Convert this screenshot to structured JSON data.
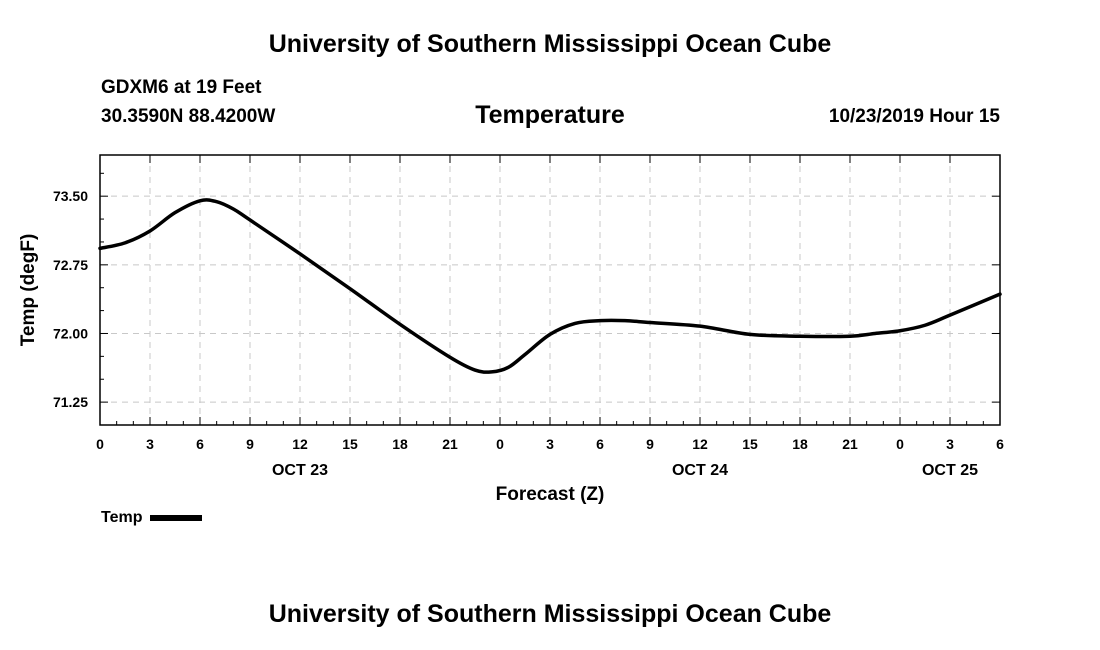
{
  "page": {
    "title_top": "University of Southern Mississippi Ocean Cube",
    "title_bottom": "University of Southern Mississippi Ocean Cube",
    "station": "GDXM6 at 19 Feet",
    "coords": "30.3590N 88.4200W",
    "plot_title": "Temperature",
    "datestamp": "10/23/2019 Hour 15"
  },
  "chart_data": {
    "type": "line",
    "title": "Temperature",
    "xlabel": "Forecast (Z)",
    "ylabel": "Temp (degF)",
    "xlim": [
      0,
      54
    ],
    "ylim": [
      71.0,
      73.95
    ],
    "x_ticks": [
      {
        "pos": 0,
        "label": "0"
      },
      {
        "pos": 3,
        "label": "3"
      },
      {
        "pos": 6,
        "label": "6"
      },
      {
        "pos": 9,
        "label": "9"
      },
      {
        "pos": 12,
        "label": "12"
      },
      {
        "pos": 15,
        "label": "15"
      },
      {
        "pos": 18,
        "label": "18"
      },
      {
        "pos": 21,
        "label": "21"
      },
      {
        "pos": 24,
        "label": "0"
      },
      {
        "pos": 27,
        "label": "3"
      },
      {
        "pos": 30,
        "label": "6"
      },
      {
        "pos": 33,
        "label": "9"
      },
      {
        "pos": 36,
        "label": "12"
      },
      {
        "pos": 39,
        "label": "15"
      },
      {
        "pos": 42,
        "label": "18"
      },
      {
        "pos": 45,
        "label": "21"
      },
      {
        "pos": 48,
        "label": "0"
      },
      {
        "pos": 51,
        "label": "3"
      },
      {
        "pos": 54,
        "label": "6"
      }
    ],
    "date_labels": [
      {
        "pos": 12,
        "label": "OCT 23"
      },
      {
        "pos": 36,
        "label": "OCT 24"
      },
      {
        "pos": 51,
        "label": "OCT 25"
      }
    ],
    "y_ticks": [
      {
        "value": 71.25,
        "label": "71.25"
      },
      {
        "value": 72.0,
        "label": "72.00"
      },
      {
        "value": 72.75,
        "label": "72.75"
      },
      {
        "value": 73.5,
        "label": "73.50"
      }
    ],
    "grid": true,
    "legend": "bottom-left",
    "series": [
      {
        "name": "Temp",
        "x": [
          0,
          1.5,
          3,
          4.5,
          6,
          7,
          8,
          9,
          12,
          15,
          18,
          21,
          22.5,
          23.5,
          24.5,
          25.5,
          27,
          28.5,
          30,
          31.5,
          33,
          36,
          39,
          42,
          45,
          46.5,
          48,
          49.5,
          51,
          54
        ],
        "y": [
          72.93,
          72.99,
          73.12,
          73.32,
          73.45,
          73.44,
          73.36,
          73.24,
          72.87,
          72.49,
          72.1,
          71.74,
          71.6,
          71.58,
          71.63,
          71.77,
          71.99,
          72.11,
          72.14,
          72.14,
          72.12,
          72.08,
          71.99,
          71.97,
          71.97,
          72.0,
          72.03,
          72.09,
          72.2,
          72.43
        ]
      }
    ]
  },
  "legend": {
    "label": "Temp"
  }
}
